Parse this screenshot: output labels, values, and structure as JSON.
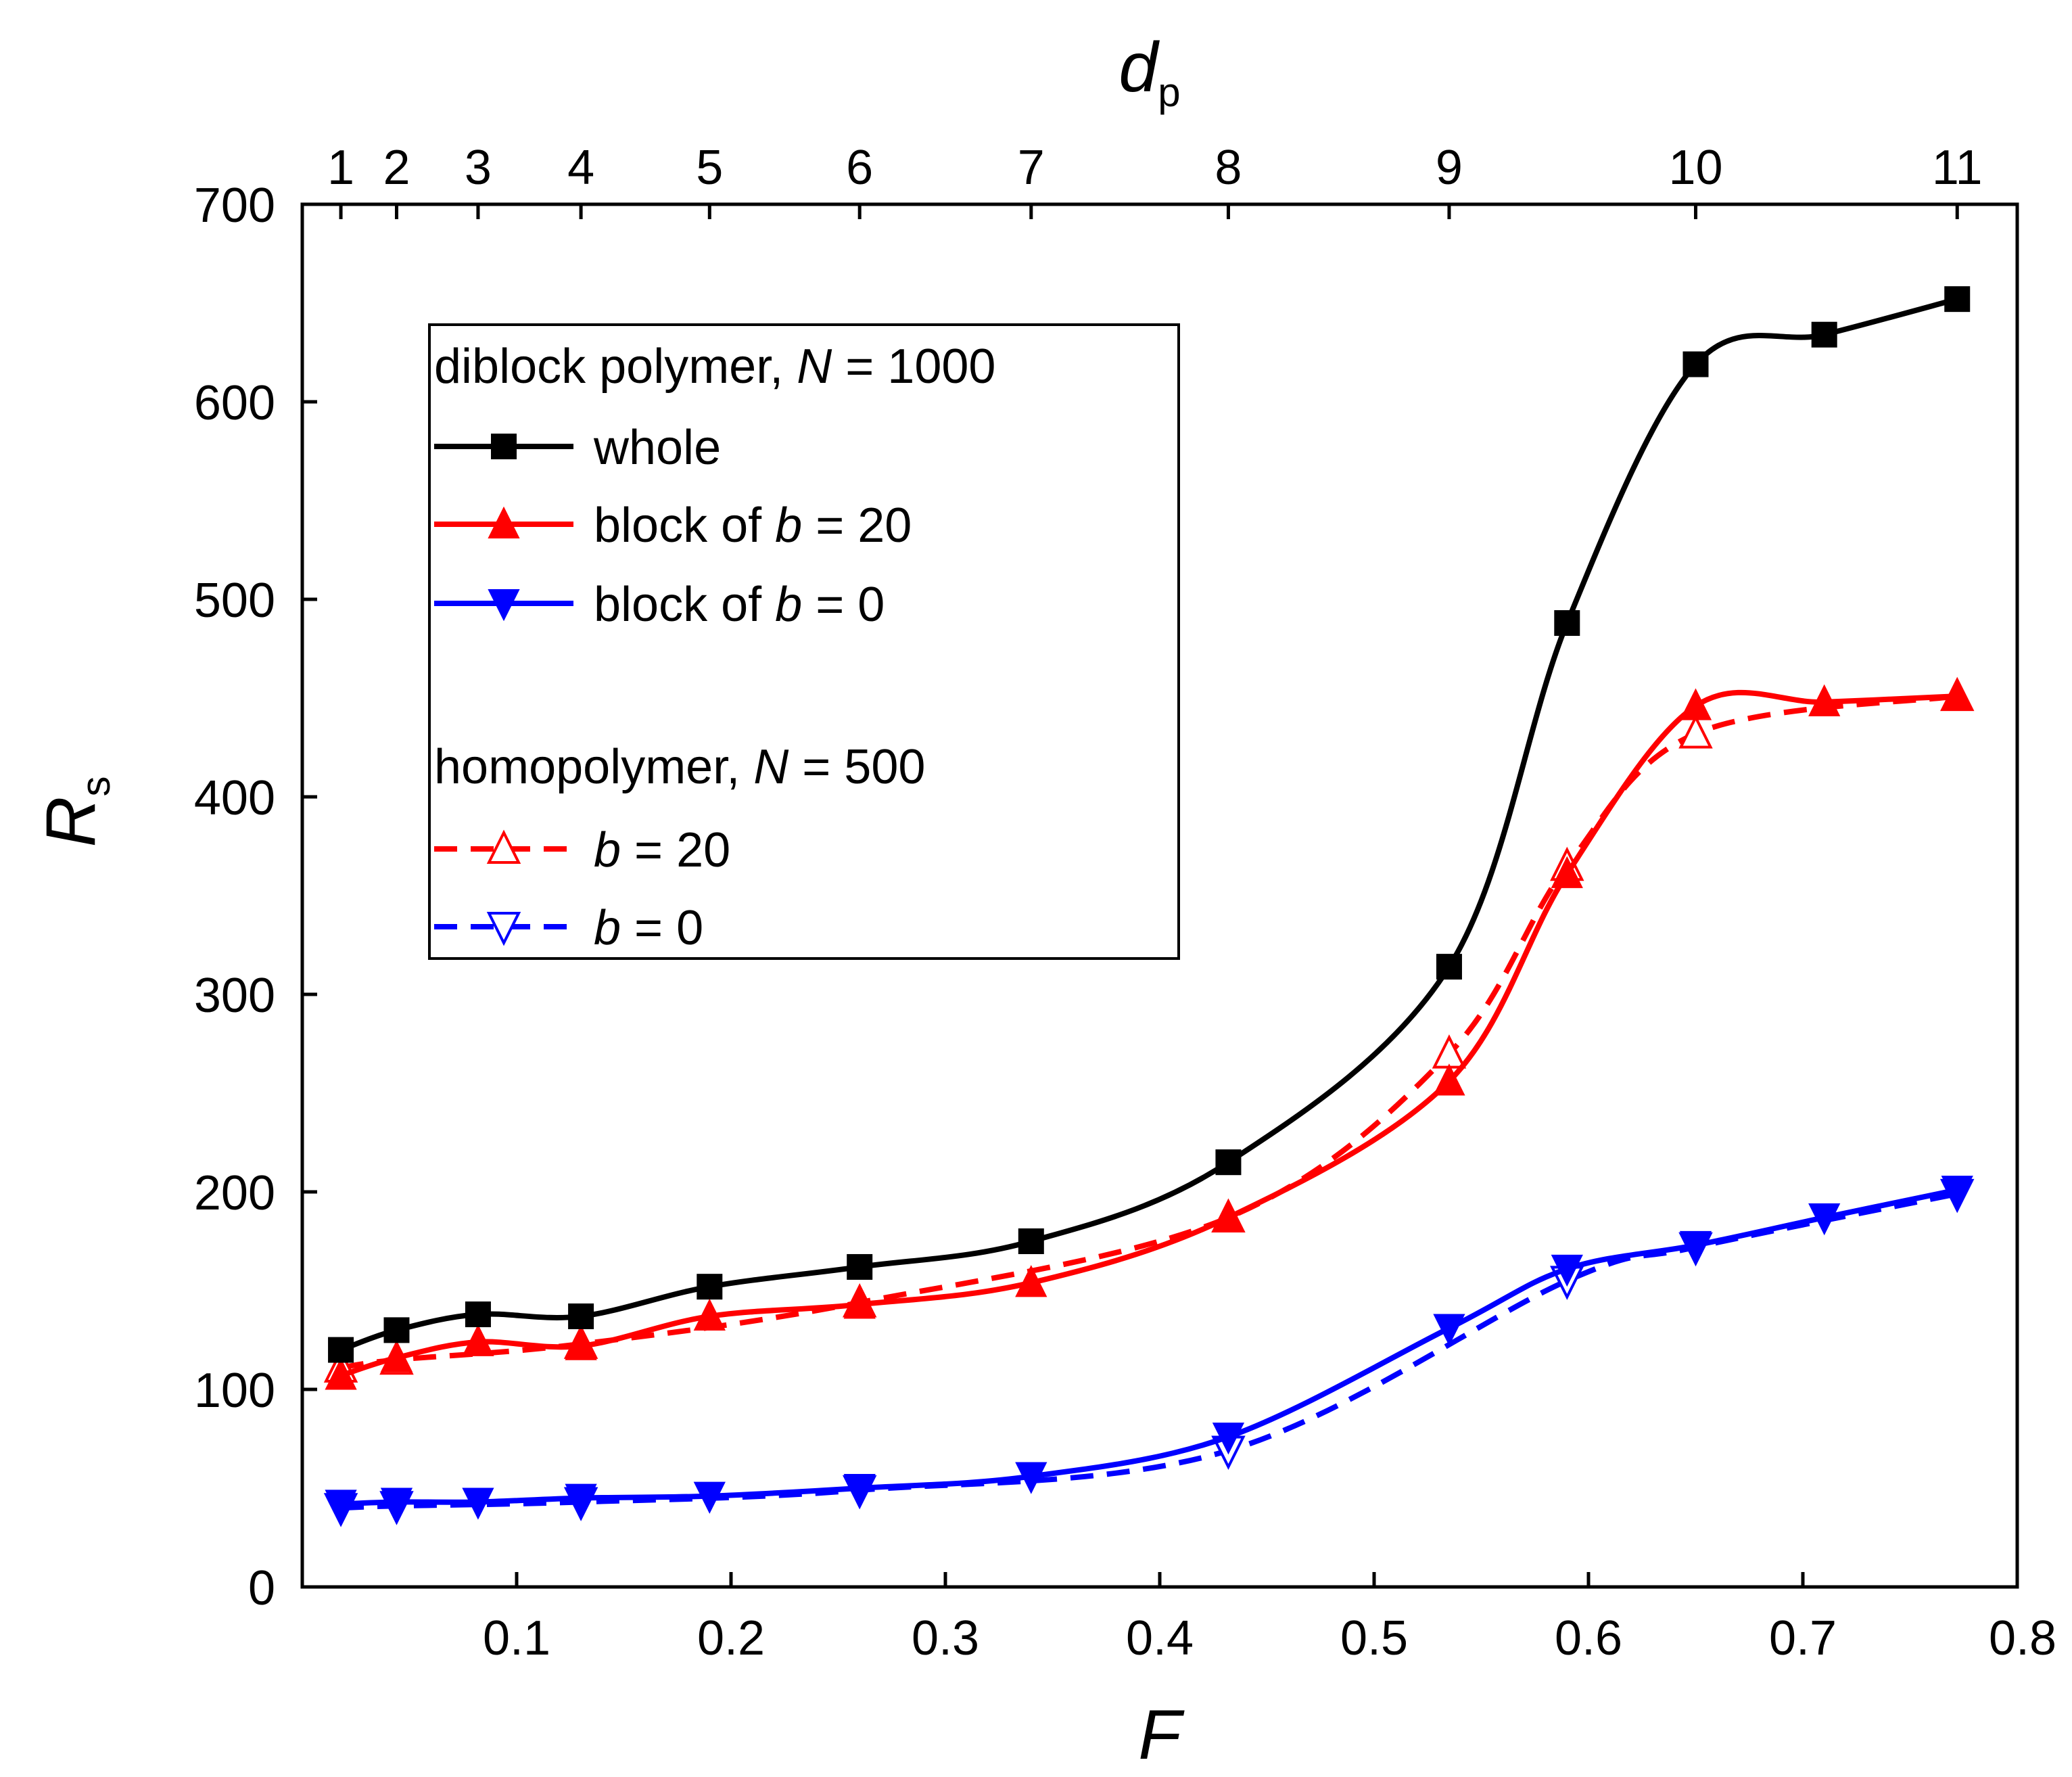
{
  "chart_data": {
    "type": "line",
    "x_bottom": {
      "label": "F",
      "range": [
        0.0,
        0.8
      ],
      "ticks": [
        0.1,
        0.2,
        0.3,
        0.4,
        0.5,
        0.6,
        0.7,
        0.8
      ],
      "tick_labels": [
        "0.1",
        "0.2",
        "0.3",
        "0.4",
        "0.5",
        "0.6",
        "0.7",
        "0.8"
      ]
    },
    "x_top": {
      "label_main": "d",
      "label_sub": "p",
      "ticks_F": [
        0.018,
        0.044,
        0.082,
        0.13,
        0.19,
        0.26,
        0.34,
        0.432,
        0.535,
        0.65,
        0.772
      ],
      "tick_labels": [
        "1",
        "2",
        "3",
        "4",
        "5",
        "6",
        "7",
        "8",
        "9",
        "10",
        "11"
      ]
    },
    "y": {
      "label_main": "R",
      "label_sub": "s",
      "range": [
        0,
        700
      ],
      "ticks": [
        0,
        100,
        200,
        300,
        400,
        500,
        600,
        700
      ],
      "tick_labels": [
        "0",
        "100",
        "200",
        "300",
        "400",
        "500",
        "600",
        "700"
      ]
    },
    "legend": {
      "position": "upper-left",
      "group1_title_pre": "diblock polymer, ",
      "group1_title_italic": "N",
      "group1_title_post": " = 1000",
      "group2_title_pre": "homopolymer, ",
      "group2_title_italic": "N",
      "group2_title_post": " = 500",
      "items": [
        {
          "pre": "whole",
          "italic": "",
          "post": ""
        },
        {
          "pre": "block of ",
          "italic": "b",
          "post": " = 20"
        },
        {
          "pre": "block of ",
          "italic": "b",
          "post": " = 0"
        },
        {
          "pre": "",
          "italic": "b",
          "post": " = 20"
        },
        {
          "pre": "",
          "italic": "b",
          "post": " = 0"
        }
      ]
    },
    "series": [
      {
        "name": "whole",
        "color": "#000000",
        "marker": "square-filled",
        "line": "solid",
        "x": [
          0.018,
          0.044,
          0.082,
          0.13,
          0.19,
          0.26,
          0.34,
          0.432,
          0.535,
          0.59,
          0.65,
          0.71,
          0.772
        ],
        "y": [
          120,
          130,
          138,
          137,
          152,
          162,
          175,
          215,
          314,
          488,
          619,
          634,
          652
        ]
      },
      {
        "name": "block of b = 20",
        "color": "#ff0000",
        "marker": "triangle-up-filled",
        "line": "solid",
        "x": [
          0.018,
          0.044,
          0.082,
          0.13,
          0.19,
          0.26,
          0.34,
          0.432,
          0.535,
          0.59,
          0.65,
          0.71,
          0.772
        ],
        "y": [
          107,
          116,
          124,
          122,
          137,
          143,
          154,
          187,
          256,
          361,
          446,
          448,
          451
        ]
      },
      {
        "name": "block of b = 0",
        "color": "#0000ff",
        "marker": "triangle-down-filled",
        "line": "solid",
        "x": [
          0.018,
          0.044,
          0.082,
          0.13,
          0.19,
          0.26,
          0.34,
          0.432,
          0.535,
          0.59,
          0.65,
          0.71,
          0.772
        ],
        "y": [
          42,
          43,
          43,
          45,
          46,
          50,
          56,
          76,
          131,
          161,
          173,
          187,
          201
        ]
      },
      {
        "name": "homopolymer b = 20",
        "color": "#ff0000",
        "marker": "triangle-up-open",
        "line": "dashed",
        "x": [
          0.018,
          0.044,
          0.13,
          0.26,
          0.432,
          0.535,
          0.59,
          0.65,
          0.772
        ],
        "y": [
          111,
          115,
          123,
          144,
          187,
          270,
          365,
          432,
          451
        ]
      },
      {
        "name": "homopolymer b = 0",
        "color": "#0000ff",
        "marker": "triangle-down-open",
        "line": "dashed",
        "x": [
          0.018,
          0.044,
          0.13,
          0.26,
          0.432,
          0.59,
          0.65,
          0.772
        ],
        "y": [
          40,
          41,
          43,
          49,
          69,
          155,
          172,
          199
        ]
      }
    ]
  }
}
